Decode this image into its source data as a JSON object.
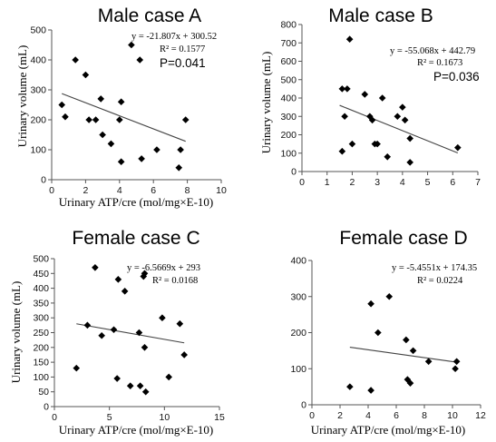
{
  "chart_data": [
    {
      "type": "scatter",
      "title": "Male case A",
      "xlabel": "Urinary ATP/cre (mol/mg×E-10)",
      "ylabel": "Urinary volume (mL)",
      "xlim": [
        0,
        10
      ],
      "xticks": [
        "0",
        "2",
        "4",
        "6",
        "8",
        "10"
      ],
      "ylim": [
        0,
        500
      ],
      "yticks": [
        "0",
        "100",
        "200",
        "300",
        "400",
        "500"
      ],
      "equation": "y = -21.807x + 300.52",
      "r2": "R² = 0.1577",
      "pvalue": "P=0.041",
      "trend": {
        "slope": -21.807,
        "intercept": 300.52,
        "x_start": 0.6,
        "x_end": 7.9
      },
      "points": [
        [
          0.6,
          250
        ],
        [
          0.8,
          210
        ],
        [
          1.4,
          400
        ],
        [
          2.0,
          350
        ],
        [
          2.2,
          200
        ],
        [
          2.6,
          200
        ],
        [
          2.9,
          270
        ],
        [
          3.0,
          150
        ],
        [
          3.5,
          120
        ],
        [
          4.0,
          200
        ],
        [
          4.1,
          60
        ],
        [
          4.1,
          260
        ],
        [
          4.7,
          450
        ],
        [
          5.2,
          400
        ],
        [
          5.3,
          70
        ],
        [
          6.2,
          100
        ],
        [
          7.5,
          40
        ],
        [
          7.6,
          100
        ],
        [
          7.9,
          200
        ]
      ]
    },
    {
      "type": "scatter",
      "title": "Male case B",
      "xlabel": "",
      "ylabel": "Urinary volume (mL)",
      "xlim": [
        0,
        7
      ],
      "xticks": [
        "0",
        "1",
        "2",
        "3",
        "4",
        "5",
        "6",
        "7"
      ],
      "ylim": [
        0,
        800
      ],
      "yticks": [
        "0",
        "100",
        "200",
        "300",
        "400",
        "500",
        "600",
        "700",
        "800"
      ],
      "equation": "y = -55.068x + 442.79",
      "r2": "R² = 0.1673",
      "pvalue": "P=0.036",
      "trend": {
        "slope": -55.068,
        "intercept": 442.79,
        "x_start": 1.5,
        "x_end": 6.2
      },
      "points": [
        [
          1.6,
          450
        ],
        [
          1.6,
          110
        ],
        [
          1.7,
          300
        ],
        [
          1.8,
          450
        ],
        [
          1.9,
          720
        ],
        [
          2.0,
          150
        ],
        [
          2.5,
          420
        ],
        [
          2.7,
          300
        ],
        [
          2.8,
          280
        ],
        [
          2.9,
          150
        ],
        [
          3.0,
          150
        ],
        [
          3.2,
          400
        ],
        [
          3.4,
          80
        ],
        [
          3.8,
          300
        ],
        [
          4.0,
          350
        ],
        [
          4.1,
          280
        ],
        [
          4.3,
          180
        ],
        [
          4.3,
          50
        ],
        [
          6.2,
          130
        ]
      ]
    },
    {
      "type": "scatter",
      "title": "Female case C",
      "xlabel": "Urinary ATP/cre (mol/mg×E-10)",
      "ylabel": "Urinary volume (mL)",
      "xlim": [
        0,
        15
      ],
      "xticks": [
        "0",
        "5",
        "10",
        "15"
      ],
      "ylim": [
        0,
        500
      ],
      "yticks": [
        "0",
        "50",
        "100",
        "150",
        "200",
        "250",
        "300",
        "350",
        "400",
        "450",
        "500"
      ],
      "equation": "y = -6.5669x + 293",
      "r2": "R² = 0.0168",
      "pvalue": "",
      "trend": {
        "slope": -6.5669,
        "intercept": 293,
        "x_start": 2.0,
        "x_end": 11.8
      },
      "points": [
        [
          2.0,
          130
        ],
        [
          3.0,
          275
        ],
        [
          3.7,
          470
        ],
        [
          4.3,
          240
        ],
        [
          5.4,
          260
        ],
        [
          5.7,
          95
        ],
        [
          5.8,
          430
        ],
        [
          6.4,
          390
        ],
        [
          6.9,
          70
        ],
        [
          7.7,
          250
        ],
        [
          7.8,
          70
        ],
        [
          8.1,
          440
        ],
        [
          8.2,
          450
        ],
        [
          8.2,
          200
        ],
        [
          8.3,
          50
        ],
        [
          9.8,
          300
        ],
        [
          10.4,
          100
        ],
        [
          11.4,
          280
        ],
        [
          11.8,
          175
        ]
      ]
    },
    {
      "type": "scatter",
      "title": "Female case D",
      "xlabel": "Urinary ATP/cre (mol/mg×E-10)",
      "ylabel": "",
      "xlim": [
        0,
        12
      ],
      "xticks": [
        "0",
        "2",
        "4",
        "6",
        "8",
        "10",
        "12"
      ],
      "ylim": [
        0,
        400
      ],
      "yticks": [
        "0",
        "100",
        "200",
        "300",
        "400"
      ],
      "equation": "y = -5.4551x + 174.35",
      "r2": "R² = 0.0224",
      "pvalue": "",
      "trend": {
        "slope": -5.4551,
        "intercept": 174.35,
        "x_start": 2.7,
        "x_end": 10.3
      },
      "points": [
        [
          2.7,
          50
        ],
        [
          4.2,
          280
        ],
        [
          4.2,
          40
        ],
        [
          4.7,
          200
        ],
        [
          5.5,
          300
        ],
        [
          6.7,
          180
        ],
        [
          6.8,
          70
        ],
        [
          7.0,
          60
        ],
        [
          7.2,
          150
        ],
        [
          8.3,
          120
        ],
        [
          10.2,
          100
        ],
        [
          10.3,
          120
        ]
      ]
    }
  ]
}
